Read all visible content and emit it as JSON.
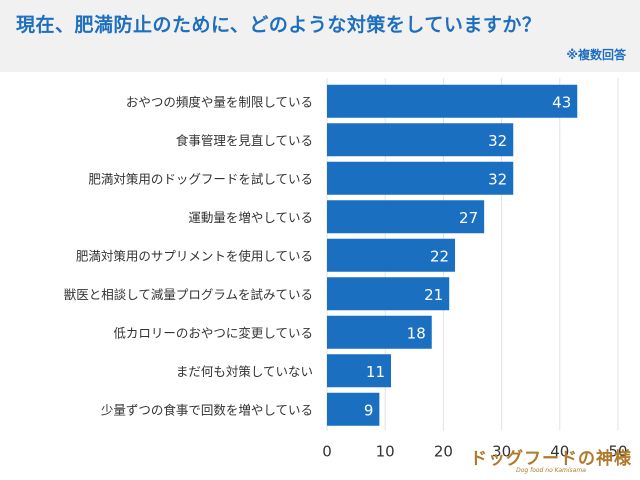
{
  "header": {
    "title": "現在、肥満防止のために、どのような対策をしていますか？",
    "subtitle": "※複数回答"
  },
  "logo": {
    "text": "ドッグフードの神様",
    "subtext": "Dog food no Kamisama"
  },
  "colors": {
    "bar": "#1b6fc0",
    "header_bg": "#f1f1f1",
    "title": "#1f6fbf",
    "grid": "#e2e2e2",
    "label": "#333333",
    "logo": "#b07a2a"
  },
  "chart_data": {
    "type": "bar",
    "orientation": "horizontal",
    "categories": [
      "おやつの頻度や量を制限している",
      "食事管理を見直している",
      "肥満対策用のドッグフードを試している",
      "運動量を増やしている",
      "肥満対策用のサプリメントを使用している",
      "獣医と相談して減量プログラムを試みている",
      "低カロリーのおやつに変更している",
      "まだ何も対策していない",
      "少量ずつの食事で回数を増やしている"
    ],
    "values": [
      43,
      32,
      32,
      27,
      22,
      21,
      18,
      11,
      9
    ],
    "xlim": [
      0,
      50
    ],
    "xticks": [
      "0",
      "10",
      "20",
      "30",
      "40",
      "50"
    ],
    "grid": true,
    "data_labels": true
  }
}
